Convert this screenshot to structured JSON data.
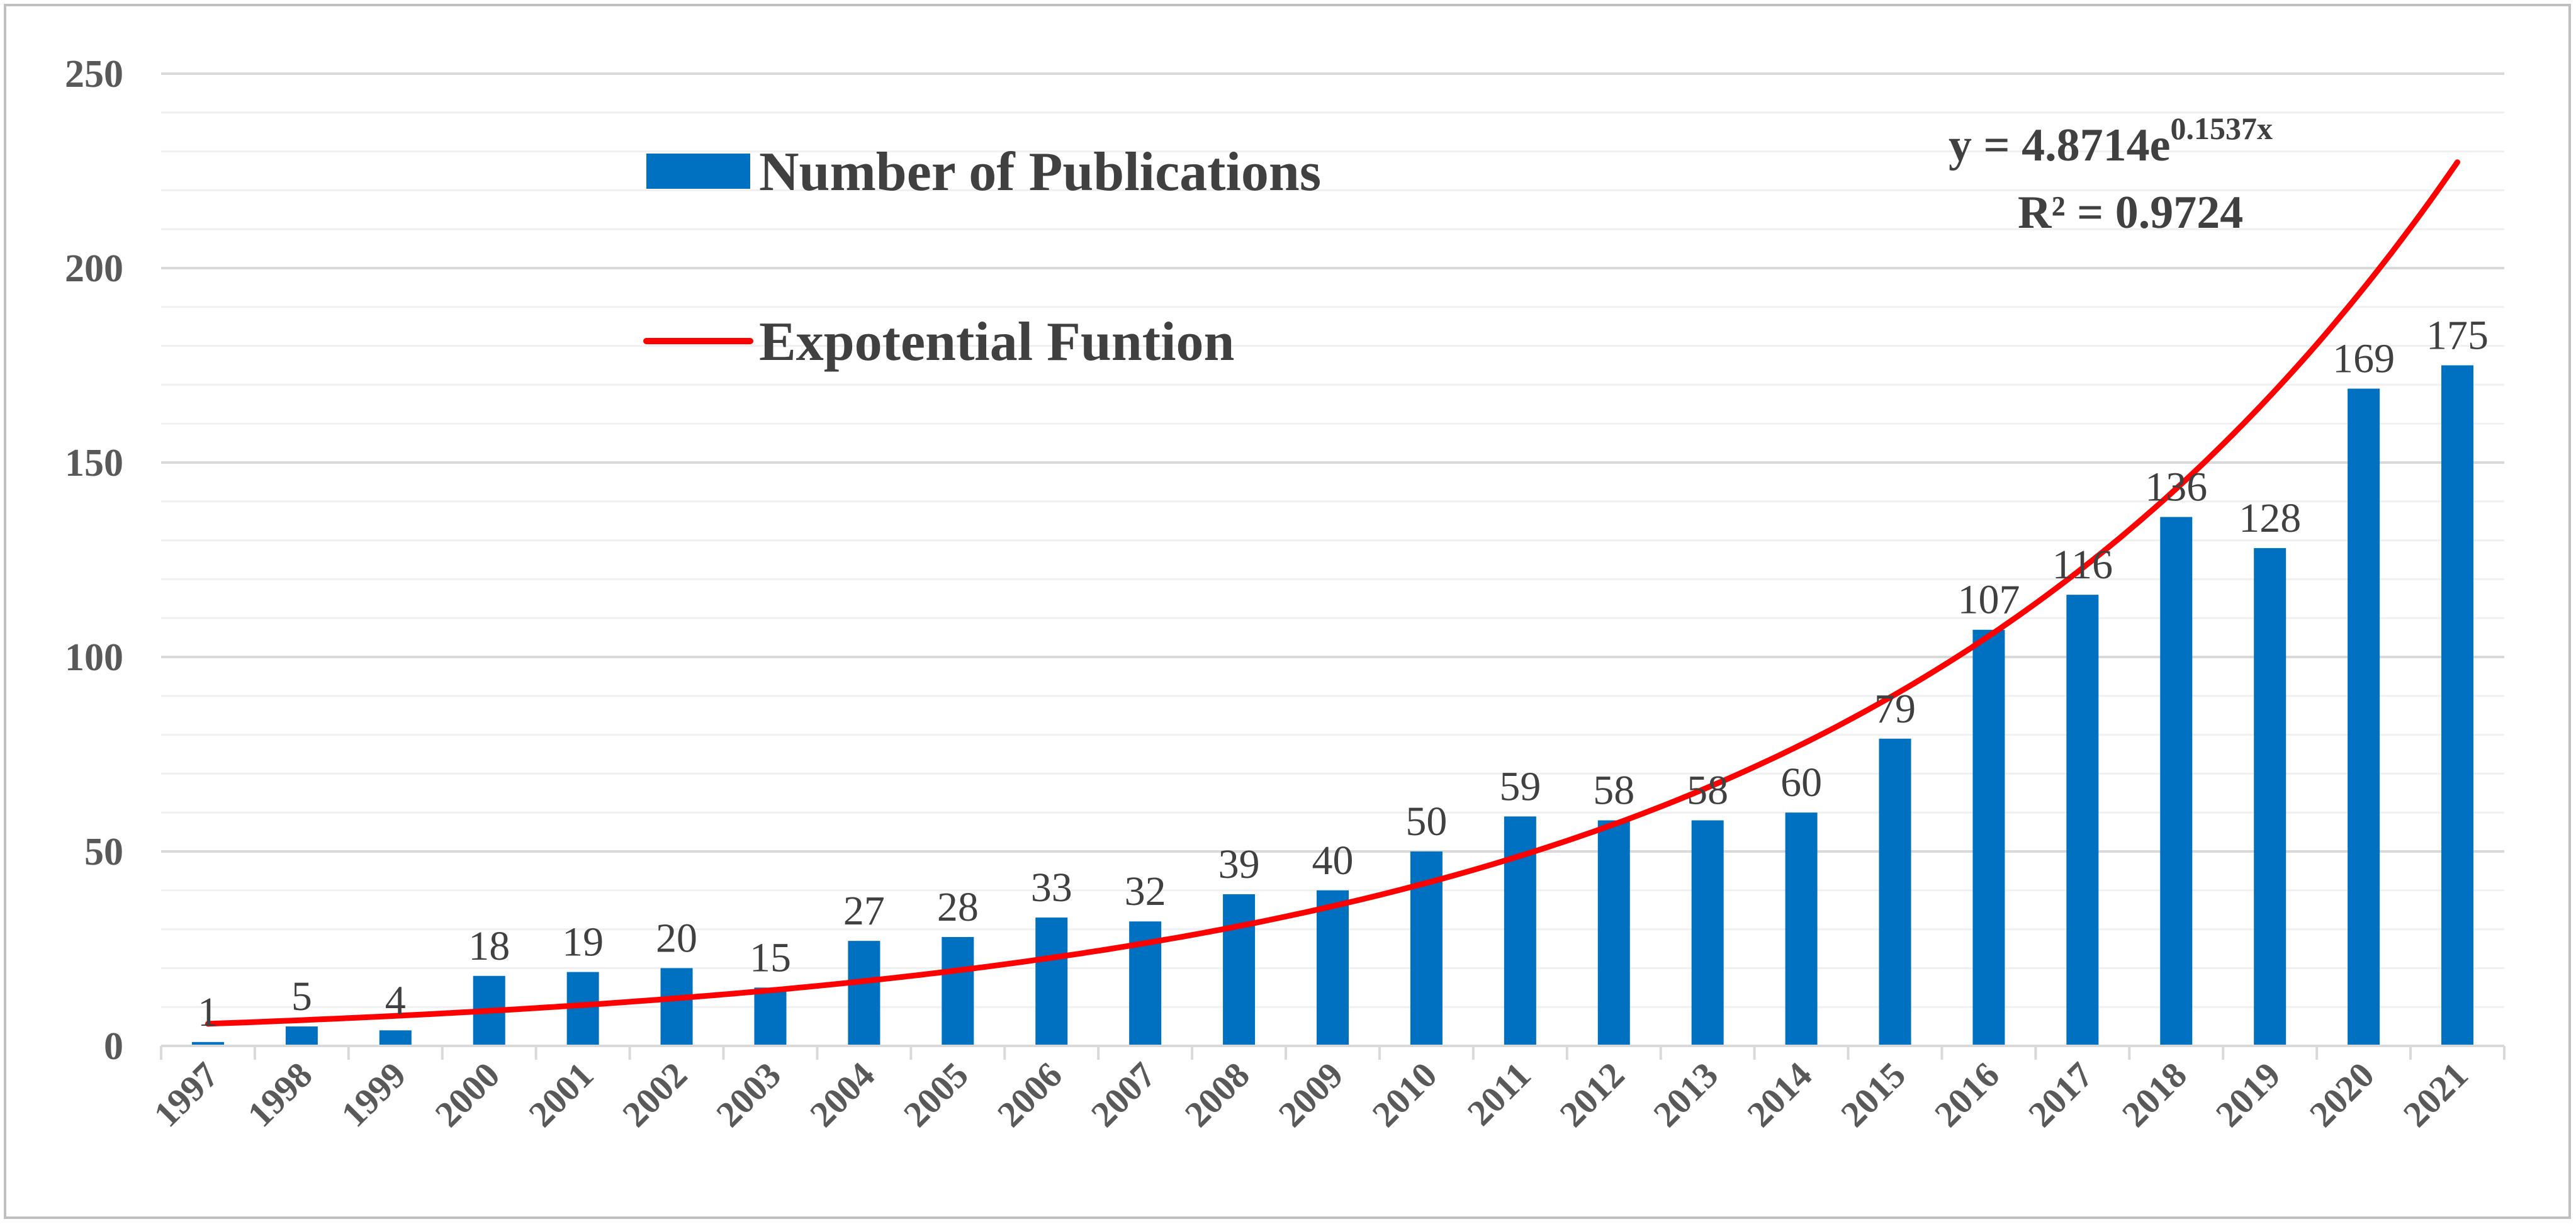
{
  "chart_data": {
    "type": "bar",
    "categories": [
      "1997",
      "1998",
      "1999",
      "2000",
      "2001",
      "2002",
      "2003",
      "2004",
      "2005",
      "2006",
      "2007",
      "2008",
      "2009",
      "2010",
      "2011",
      "2012",
      "2013",
      "2014",
      "2015",
      "2016",
      "2017",
      "2018",
      "2019",
      "2020",
      "2021"
    ],
    "series": [
      {
        "name": "Number of Publications",
        "type": "bar",
        "color": "#0070c0",
        "values": [
          1,
          5,
          4,
          18,
          19,
          20,
          15,
          27,
          28,
          33,
          32,
          39,
          40,
          50,
          59,
          58,
          58,
          60,
          79,
          107,
          116,
          136,
          128,
          169,
          175
        ],
        "data_labels": [
          "1",
          "5",
          "4",
          "18",
          "19",
          "20",
          "15",
          "27",
          "28",
          "33",
          "32",
          "39",
          "40",
          "50",
          "59",
          "58",
          "58",
          "60",
          "79",
          "107",
          "116",
          "136",
          "128",
          "169",
          "175"
        ]
      },
      {
        "name": "Expotential Funtion",
        "type": "line",
        "color": "#ff0000",
        "equation": {
          "a": 4.8714,
          "b": 0.1537
        }
      }
    ],
    "trendline_label": {
      "equation_prefix": "y = 4.8714e",
      "equation_exponent": "0.1537x",
      "r_squared": "R² = 0.9724"
    },
    "ylim": [
      0,
      250
    ],
    "yticks": [
      "0",
      "50",
      "100",
      "150",
      "200",
      "250"
    ],
    "y_minor_step": 10,
    "grid": true,
    "legend_position": "top-center",
    "title": "",
    "xlabel": "",
    "ylabel": ""
  }
}
